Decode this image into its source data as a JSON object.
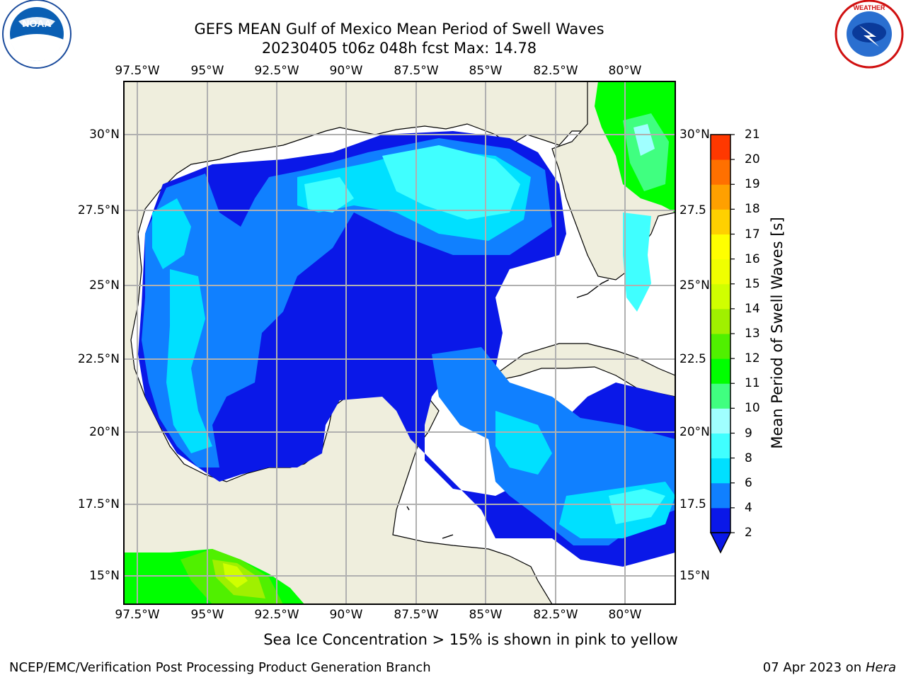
{
  "title_line1": "GEFS MEAN Gulf of Mexico Mean Period of Swell Waves",
  "title_line2": "20230405 t06z 048h fcst   Max: 14.78",
  "lon_labels": [
    "97.5°W",
    "95°W",
    "92.5°W",
    "90°W",
    "87.5°W",
    "85°W",
    "82.5°W",
    "80°W"
  ],
  "lat_labels": [
    "30°N",
    "27.5°N",
    "25°N",
    "22.5°N",
    "20°N",
    "17.5°N",
    "15°N"
  ],
  "lat_labels_right": [
    "30°N",
    "27.5",
    "25°N",
    "22.5",
    "20°N",
    "17.5",
    "15°N"
  ],
  "colorbar": {
    "title": "Mean Period of Swell Waves [s]",
    "ticks": [
      "2",
      "4",
      "6",
      "8",
      "9",
      "10",
      "11",
      "12",
      "13",
      "14",
      "15",
      "16",
      "17",
      "18",
      "19",
      "20",
      "21"
    ],
    "colors": [
      "#0a18e8",
      "#1080ff",
      "#00e0ff",
      "#40ffff",
      "#a0ffff",
      "#40ff80",
      "#00ff00",
      "#50f000",
      "#a0f000",
      "#d0ff00",
      "#f0ff00",
      "#ffff00",
      "#ffd000",
      "#ffa000",
      "#ff7000",
      "#ff3800",
      "#ff0000"
    ]
  },
  "note": "Sea Ice Concentration > 15% is shown in pink to yellow",
  "footer_left": "NCEP/EMC/Verification Post Processing Product Generation Branch",
  "footer_right_text": "07 Apr 2023 on ",
  "footer_right_host": "Hera",
  "logos": {
    "left": "NOAA",
    "right": "NATIONAL WEATHER SERVICE"
  }
}
